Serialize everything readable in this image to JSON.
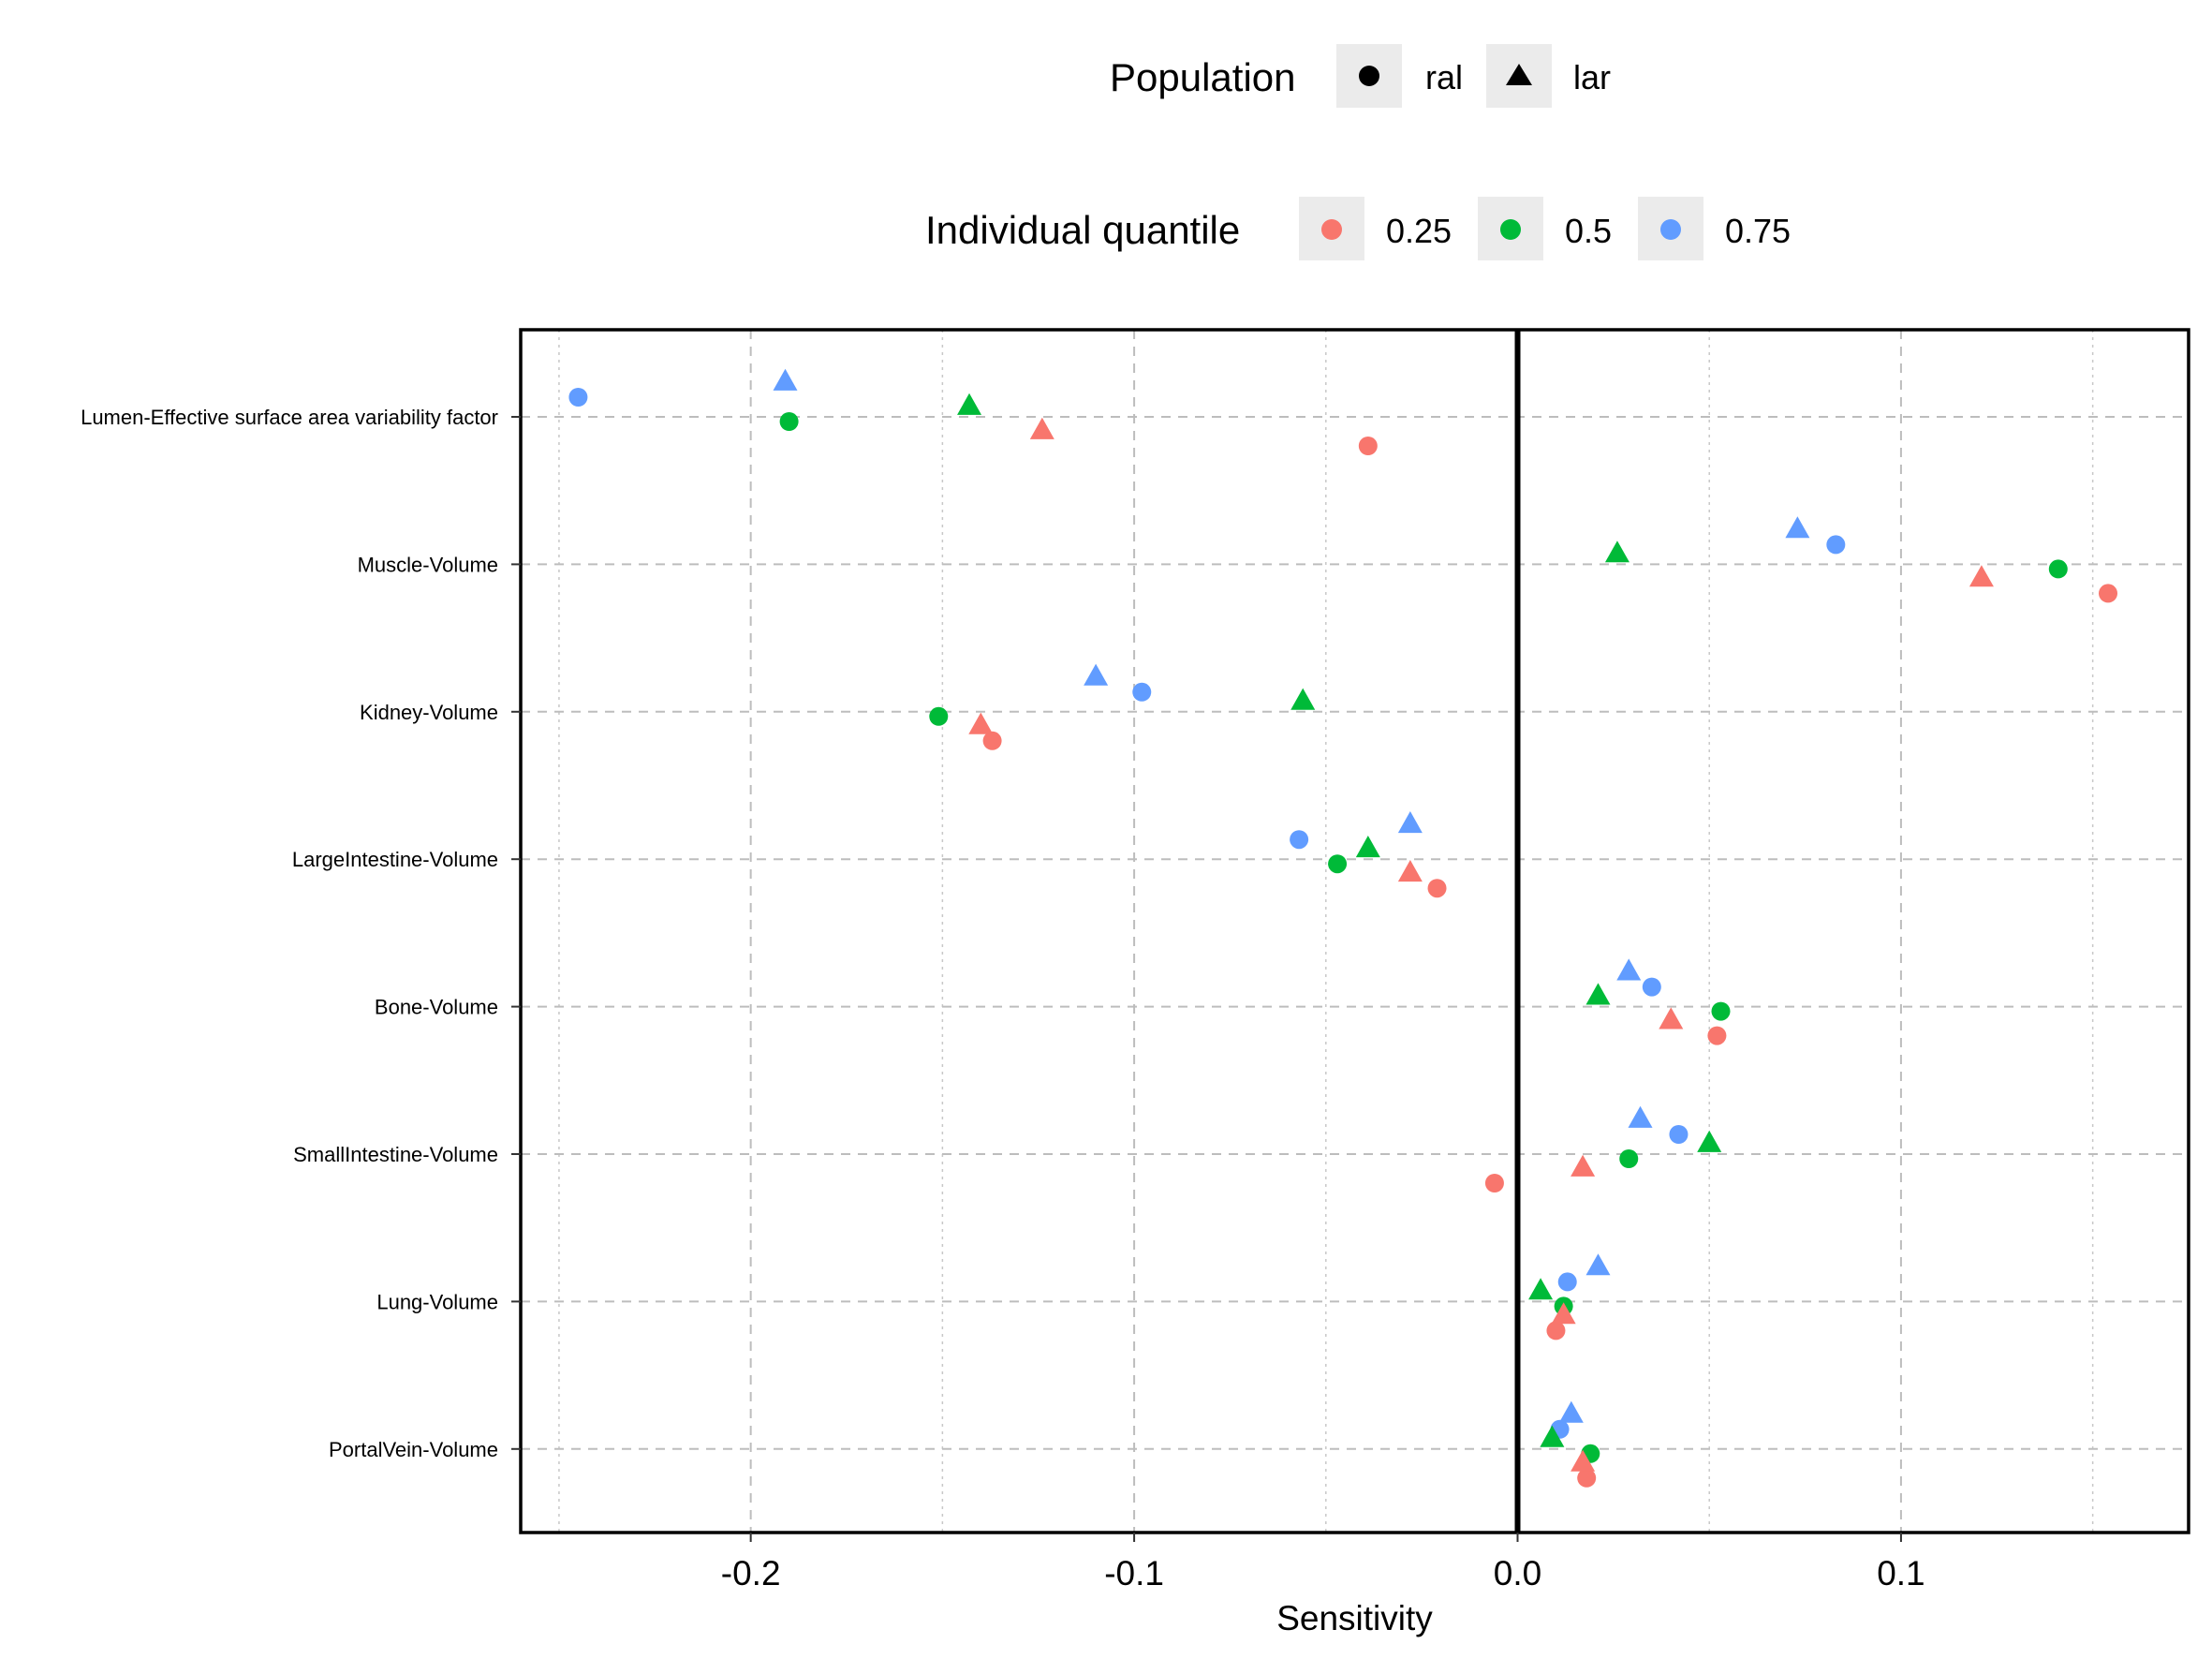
{
  "chart_data": {
    "type": "scatter",
    "orientation": "horizontal",
    "xlabel": "Sensitivity",
    "ylabel": "",
    "xlim": [
      -0.26,
      0.175
    ],
    "x_ticks": [
      -0.2,
      -0.1,
      0.0,
      0.1
    ],
    "x_tick_labels": [
      "-0.2",
      "-0.1",
      "0.0",
      "0.1"
    ],
    "grid": true,
    "reference_line_x": 0,
    "legend_position": "top",
    "legends": {
      "shape": {
        "title": "Population",
        "entries": [
          {
            "label": "ral",
            "shape": "circle"
          },
          {
            "label": "lar",
            "shape": "triangle"
          }
        ]
      },
      "color": {
        "title": "Individual quantile",
        "entries": [
          {
            "label": "0.25",
            "color": "#F8766D"
          },
          {
            "label": "0.5",
            "color": "#00BA38"
          },
          {
            "label": "0.75",
            "color": "#619CFF"
          }
        ]
      }
    },
    "categories": [
      "Lumen-Effective surface area variability factor",
      "Muscle-Volume",
      "Kidney-Volume",
      "LargeIntestine-Volume",
      "Bone-Volume",
      "SmallIntestine-Volume",
      "Lung-Volume",
      "PortalVein-Volume"
    ],
    "series": [
      {
        "population": "ral",
        "quantile": "0.25",
        "values": [
          -0.039,
          0.154,
          -0.137,
          -0.021,
          0.052,
          -0.006,
          0.01,
          0.018
        ]
      },
      {
        "population": "ral",
        "quantile": "0.5",
        "values": [
          -0.19,
          0.141,
          -0.151,
          -0.047,
          0.053,
          0.029,
          0.012,
          0.019
        ]
      },
      {
        "population": "ral",
        "quantile": "0.75",
        "values": [
          -0.245,
          0.083,
          -0.098,
          -0.057,
          0.035,
          0.042,
          0.013,
          0.011
        ]
      },
      {
        "population": "lar",
        "quantile": "0.25",
        "values": [
          -0.124,
          0.121,
          -0.14,
          -0.028,
          0.04,
          0.017,
          0.012,
          0.017
        ]
      },
      {
        "population": "lar",
        "quantile": "0.5",
        "values": [
          -0.143,
          0.026,
          -0.056,
          -0.039,
          0.021,
          0.05,
          0.006,
          0.009
        ]
      },
      {
        "population": "lar",
        "quantile": "0.75",
        "values": [
          -0.191,
          0.073,
          -0.11,
          -0.028,
          0.029,
          0.032,
          0.021,
          0.014
        ]
      }
    ]
  }
}
